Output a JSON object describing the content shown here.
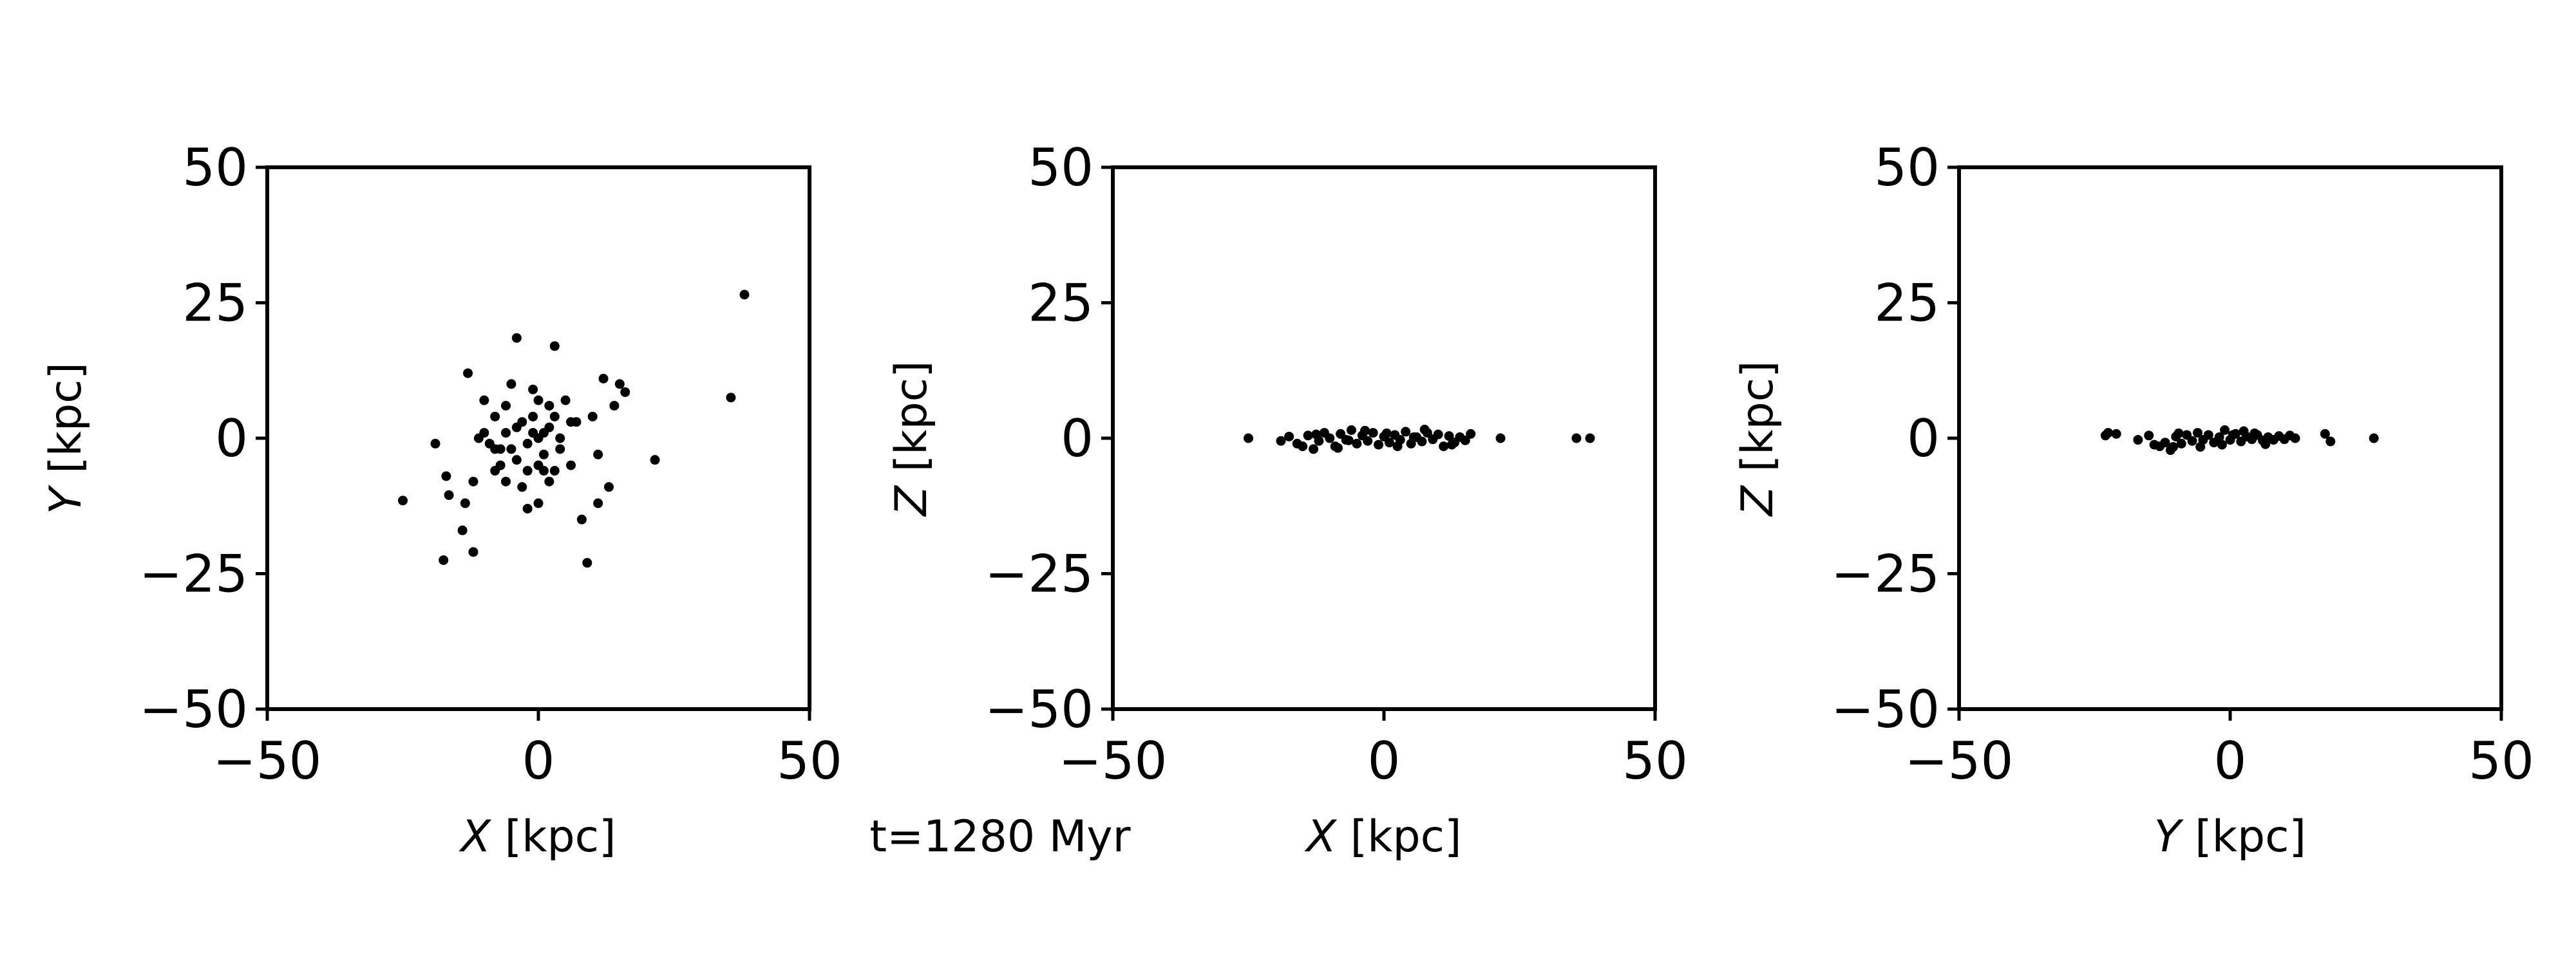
{
  "figure": {
    "annotation": "t=1280 Myr",
    "text_color": "#000000",
    "marker_color": "#000000",
    "background": "#ffffff"
  },
  "chart_data": [
    {
      "type": "scatter",
      "panel": "xy",
      "xlabel_var": "X",
      "xlabel_unit": " [kpc]",
      "ylabel_var": "Y",
      "ylabel_unit": " [kpc]",
      "xlim": [
        -50,
        50
      ],
      "ylim": [
        -50,
        50
      ],
      "xticks": [
        -50,
        0,
        50
      ],
      "yticks": [
        -50,
        -25,
        0,
        25,
        50
      ],
      "xtick_labels": [
        "−50",
        "0",
        "50"
      ],
      "ytick_labels": [
        "−50",
        "−25",
        "0",
        "25",
        "50"
      ],
      "grid": false,
      "points": [
        [
          -25,
          -11.5
        ],
        [
          -17.5,
          -22.5
        ],
        [
          -12,
          -21
        ],
        [
          -19,
          -1
        ],
        [
          -17,
          -7
        ],
        [
          -16.5,
          -10.5
        ],
        [
          -14,
          -17
        ],
        [
          -13.5,
          -12
        ],
        [
          -13,
          12
        ],
        [
          -12,
          -8
        ],
        [
          -10,
          7
        ],
        [
          -9,
          -1
        ],
        [
          -8,
          4
        ],
        [
          -8,
          -6
        ],
        [
          -7,
          -2
        ],
        [
          -6,
          6
        ],
        [
          -6,
          -8
        ],
        [
          -5,
          10
        ],
        [
          -4,
          18.5
        ],
        [
          -4,
          -4
        ],
        [
          -3,
          3
        ],
        [
          -3,
          -9
        ],
        [
          -2,
          -13
        ],
        [
          -2,
          -1
        ],
        [
          -1,
          1
        ],
        [
          -1,
          4
        ],
        [
          0,
          0
        ],
        [
          0,
          7
        ],
        [
          0,
          -5
        ],
        [
          0,
          -12
        ],
        [
          1,
          1
        ],
        [
          1,
          -3
        ],
        [
          2,
          2
        ],
        [
          2,
          -8
        ],
        [
          3,
          4
        ],
        [
          3,
          17
        ],
        [
          3,
          -6
        ],
        [
          4,
          0
        ],
        [
          5,
          7
        ],
        [
          6,
          -5
        ],
        [
          7,
          3
        ],
        [
          8,
          -15
        ],
        [
          9,
          -23
        ],
        [
          10,
          4
        ],
        [
          11,
          -3
        ],
        [
          11,
          -12
        ],
        [
          12,
          11
        ],
        [
          13,
          -9
        ],
        [
          14,
          6
        ],
        [
          15,
          10
        ],
        [
          16,
          8.5
        ],
        [
          21.5,
          -4
        ],
        [
          -10,
          1
        ],
        [
          -11,
          0
        ],
        [
          -8,
          -2
        ],
        [
          -6,
          1
        ],
        [
          -5,
          -2
        ],
        [
          -4,
          2
        ],
        [
          -2,
          -6
        ],
        [
          -1,
          9
        ],
        [
          1,
          -6
        ],
        [
          2,
          6
        ],
        [
          4,
          -2
        ],
        [
          -7,
          -5
        ],
        [
          6,
          3
        ],
        [
          35.5,
          7.5
        ],
        [
          38,
          26.5
        ]
      ]
    },
    {
      "type": "scatter",
      "panel": "xz",
      "xlabel_var": "X",
      "xlabel_unit": " [kpc]",
      "ylabel_var": "Z",
      "ylabel_unit": " [kpc]",
      "xlim": [
        -50,
        50
      ],
      "ylim": [
        -50,
        50
      ],
      "xticks": [
        -50,
        0,
        50
      ],
      "yticks": [
        -50,
        -25,
        0,
        25,
        50
      ],
      "xtick_labels": [
        "−50",
        "0",
        "50"
      ],
      "ytick_labels": [
        "−50",
        "−25",
        "0",
        "25",
        "50"
      ],
      "grid": false,
      "points": [
        [
          -25,
          0
        ],
        [
          -19,
          -0.5
        ],
        [
          -17.5,
          0.3
        ],
        [
          -16,
          -1
        ],
        [
          -14,
          0.5
        ],
        [
          -13,
          -2
        ],
        [
          -12,
          -0.5
        ],
        [
          -11,
          1
        ],
        [
          -10,
          0
        ],
        [
          -9,
          -1.5
        ],
        [
          -8,
          0.8
        ],
        [
          -7,
          -0.3
        ],
        [
          -6,
          1.5
        ],
        [
          -5,
          -1
        ],
        [
          -4,
          0.5
        ],
        [
          -3,
          -0.5
        ],
        [
          -2,
          1
        ],
        [
          -1,
          -1.2
        ],
        [
          0,
          0.3
        ],
        [
          1,
          -0.8
        ],
        [
          2,
          0.6
        ],
        [
          3,
          -0.3
        ],
        [
          4,
          1.2
        ],
        [
          5,
          -1
        ],
        [
          6,
          0.2
        ],
        [
          7,
          -0.6
        ],
        [
          8,
          1
        ],
        [
          9,
          -0.2
        ],
        [
          10,
          0.7
        ],
        [
          11,
          -1.5
        ],
        [
          12,
          0.4
        ],
        [
          13,
          -0.8
        ],
        [
          14,
          0.2
        ],
        [
          15,
          -0.4
        ],
        [
          16,
          0.8
        ],
        [
          -15,
          -1.5
        ],
        [
          -12.5,
          0.7
        ],
        [
          -8.5,
          -1.8
        ],
        [
          -3.5,
          1.4
        ],
        [
          2.5,
          -1.5
        ],
        [
          7.5,
          1.6
        ],
        [
          12.5,
          -1.2
        ],
        [
          -6.5,
          -0.4
        ],
        [
          0.5,
          0.9
        ],
        [
          5.5,
          0.2
        ],
        [
          21.5,
          0
        ],
        [
          35.5,
          0
        ],
        [
          38,
          0
        ]
      ]
    },
    {
      "type": "scatter",
      "panel": "yz",
      "xlabel_var": "Y",
      "xlabel_unit": " [kpc]",
      "ylabel_var": "Z",
      "ylabel_unit": " [kpc]",
      "xlim": [
        -50,
        50
      ],
      "ylim": [
        -50,
        50
      ],
      "xticks": [
        -50,
        0,
        50
      ],
      "yticks": [
        -50,
        -25,
        0,
        25,
        50
      ],
      "xtick_labels": [
        "−50",
        "0",
        "50"
      ],
      "ytick_labels": [
        "−50",
        "−25",
        "0",
        "25",
        "50"
      ],
      "grid": false,
      "points": [
        [
          -23,
          0.5
        ],
        [
          -22.5,
          1
        ],
        [
          -21,
          0.8
        ],
        [
          -17,
          -0.3
        ],
        [
          -15,
          0.5
        ],
        [
          -13,
          -1.5
        ],
        [
          -12,
          -0.8
        ],
        [
          -11,
          -2.2
        ],
        [
          -10,
          0.3
        ],
        [
          -9,
          -1
        ],
        [
          -8,
          0.6
        ],
        [
          -7,
          -0.5
        ],
        [
          -6,
          1
        ],
        [
          -5,
          -0.3
        ],
        [
          -4,
          0.6
        ],
        [
          -3,
          -0.8
        ],
        [
          -2,
          0.2
        ],
        [
          -1,
          1.5
        ],
        [
          0,
          -0.3
        ],
        [
          1,
          0.8
        ],
        [
          2,
          -0.6
        ],
        [
          3,
          0.3
        ],
        [
          4,
          -0.2
        ],
        [
          5,
          0.6
        ],
        [
          6,
          -0.4
        ],
        [
          7,
          0.2
        ],
        [
          8,
          -0.3
        ],
        [
          9,
          0.4
        ],
        [
          10,
          -0.2
        ],
        [
          11,
          0.5
        ],
        [
          12,
          0
        ],
        [
          -14,
          -1.2
        ],
        [
          -9.5,
          0.9
        ],
        [
          -5.5,
          -1.6
        ],
        [
          -1.5,
          -1.2
        ],
        [
          2.5,
          1.3
        ],
        [
          6.5,
          -1.1
        ],
        [
          -10.5,
          -1.6
        ],
        [
          0.5,
          0.6
        ],
        [
          4.5,
          0.9
        ],
        [
          17.5,
          0.8
        ],
        [
          18.5,
          -0.6
        ],
        [
          26.5,
          0
        ]
      ]
    }
  ]
}
